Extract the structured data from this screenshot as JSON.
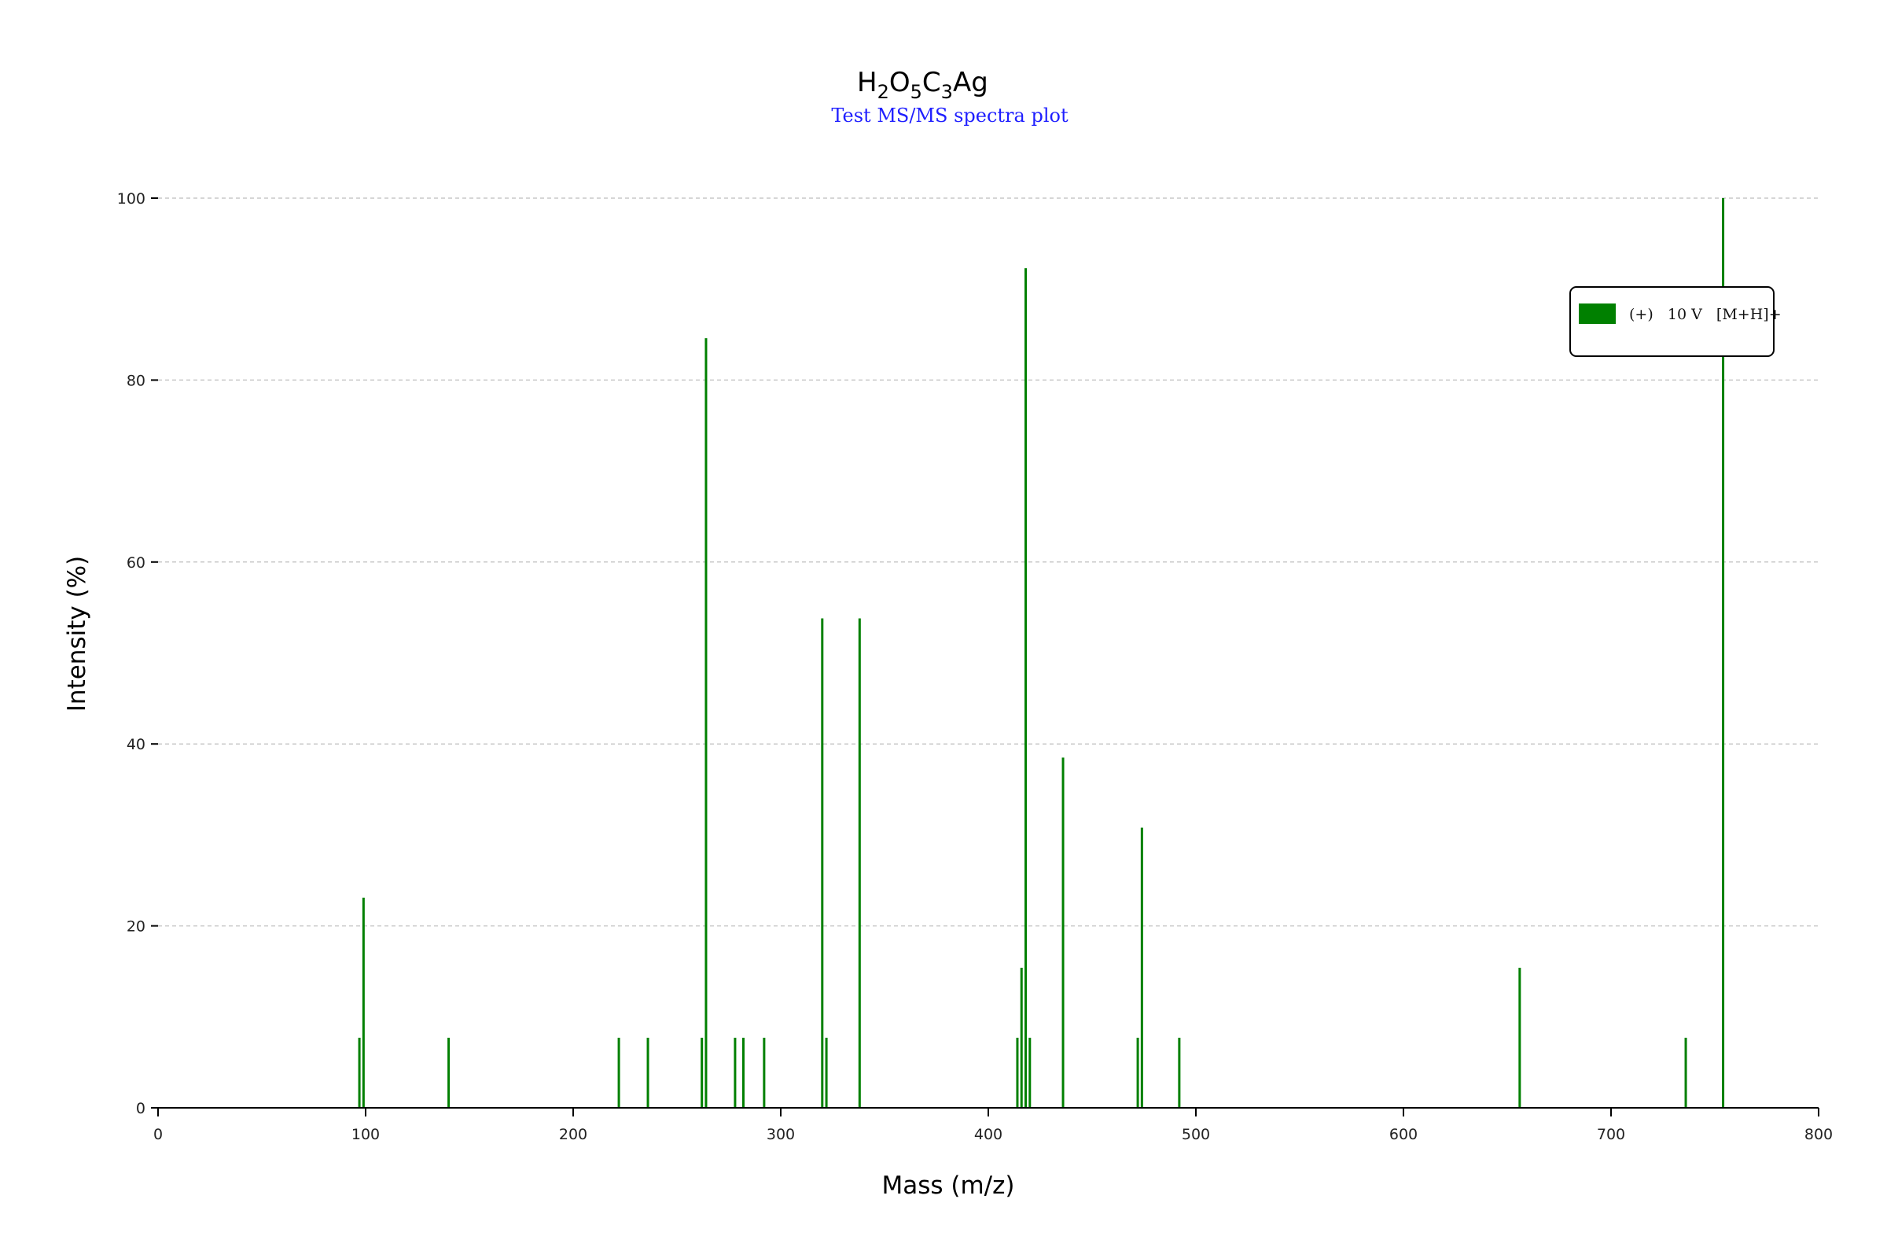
{
  "chart_data": {
    "type": "bar",
    "title_parts": [
      {
        "text": "H",
        "sub": false
      },
      {
        "text": "2",
        "sub": true
      },
      {
        "text": "O",
        "sub": false
      },
      {
        "text": "5",
        "sub": true
      },
      {
        "text": "C",
        "sub": false
      },
      {
        "text": "3",
        "sub": true
      },
      {
        "text": "Ag",
        "sub": false
      }
    ],
    "subtitle": "Test MS/MS spectra plot",
    "xlabel": "Mass (m/z)",
    "ylabel": "Intensity (%)",
    "xlim": [
      0,
      800
    ],
    "ylim": [
      0,
      100
    ],
    "x_ticks": [
      0,
      100,
      200,
      300,
      400,
      500,
      600,
      700,
      800
    ],
    "y_ticks": [
      0,
      20,
      40,
      60,
      80,
      100
    ],
    "grid": "horizontal dashed",
    "legend_position": "top-right",
    "colors": {
      "peak": "#008000",
      "grid": "#c8c8c8",
      "axis": "#000000",
      "subtitle": "#1f1fff"
    },
    "series": [
      {
        "name": "(+)   10 V   [M+H]+",
        "color": "#008000",
        "x": [
          97,
          99,
          140,
          222,
          236,
          262,
          264,
          278,
          282,
          292,
          320,
          322,
          338,
          414,
          416,
          418,
          420,
          436,
          472,
          474,
          492,
          656,
          736,
          754
        ],
        "values": [
          7.7,
          23.1,
          7.7,
          7.7,
          7.7,
          7.7,
          84.6,
          7.7,
          7.7,
          7.7,
          53.8,
          7.7,
          53.8,
          7.7,
          15.4,
          92.3,
          7.7,
          38.5,
          7.7,
          30.8,
          7.7,
          15.4,
          7.7,
          100
        ]
      }
    ]
  }
}
